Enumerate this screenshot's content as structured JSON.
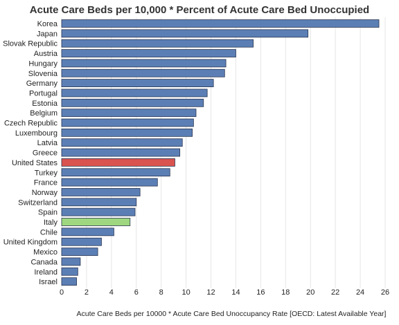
{
  "chart_data": {
    "type": "bar",
    "orientation": "horizontal",
    "title": "Acute Care Beds per 10,000 * Percent of Acute Care Bed Unoccupied",
    "xlabel": "Acute Care Beds per 10000 * Acute Care Bed Unoccupancy Rate [OECD: Latest Available Year]",
    "ylabel": "",
    "xlim": [
      0,
      26
    ],
    "ticks": [
      0,
      2,
      4,
      6,
      8,
      10,
      12,
      14,
      16,
      18,
      20,
      22,
      24,
      26
    ],
    "grid": true,
    "categories": [
      "Korea",
      "Japan",
      "Slovak Republic",
      "Austria",
      "Hungary",
      "Slovenia",
      "Germany",
      "Portugal",
      "Estonia",
      "Belgium",
      "Czech Republic",
      "Luxembourg",
      "Latvia",
      "Greece",
      "United States",
      "Turkey",
      "France",
      "Norway",
      "Switzerland",
      "Spain",
      "Italy",
      "Chile",
      "United Kingdom",
      "Mexico",
      "Canada",
      "Ireland",
      "Israel"
    ],
    "values": [
      25.5,
      19.8,
      15.4,
      14.0,
      13.2,
      13.1,
      12.2,
      11.7,
      11.4,
      10.8,
      10.6,
      10.5,
      9.7,
      9.5,
      9.1,
      8.7,
      7.7,
      6.3,
      6.0,
      5.9,
      5.5,
      4.2,
      3.2,
      2.9,
      1.5,
      1.3,
      1.2
    ],
    "colors": {
      "default": "#5b7fb5",
      "highlight_us": "#d9534f",
      "highlight_italy": "#9ed77f",
      "bar_border": "#2a3550",
      "grid": "#e6e6e6"
    },
    "highlights": {
      "United States": "highlight_us",
      "Italy": "highlight_italy"
    }
  }
}
